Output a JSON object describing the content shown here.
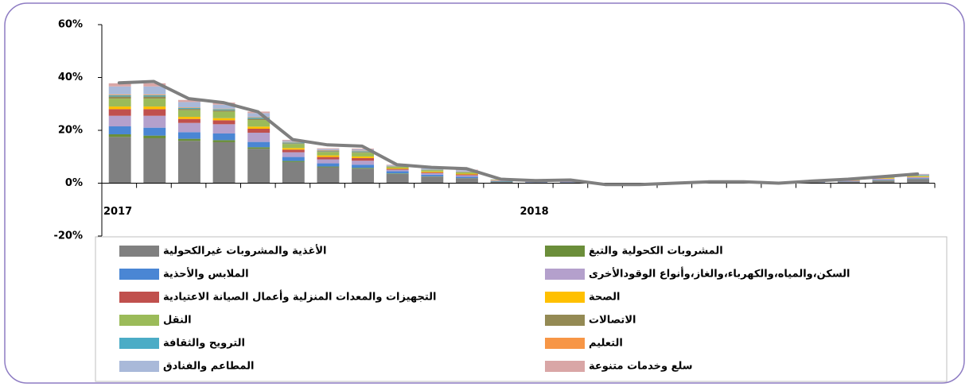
{
  "chart_data": {
    "type": "bar",
    "categories": [
      "2017",
      null,
      null,
      null,
      null,
      null,
      null,
      null,
      null,
      null,
      null,
      null,
      "2018",
      null,
      null,
      null,
      null,
      null,
      null,
      null,
      null,
      null,
      null,
      null
    ],
    "ylim": [
      -20,
      60
    ],
    "yticks": [
      {
        "value": -20,
        "label": "-20%"
      },
      {
        "value": 0,
        "label": "0%"
      },
      {
        "value": 20,
        "label": "20%"
      },
      {
        "value": 40,
        "label": "40%"
      },
      {
        "value": 60,
        "label": "60%"
      }
    ],
    "series": [
      {
        "name": "الأغذية والمشروبات غيرالكحولية",
        "color": "#808080",
        "values": [
          17.5,
          17,
          16,
          15.5,
          13,
          8,
          6,
          5.5,
          3.5,
          2.5,
          1.8,
          0.5,
          0.3,
          0.3,
          -0.3,
          -0.3,
          0,
          0.2,
          0.2,
          0,
          0.3,
          0.6,
          1,
          1.5
        ]
      },
      {
        "name": "المشروبات الكحولية والتبغ",
        "color": "#6b8e3a",
        "values": [
          1,
          1,
          0.8,
          0.8,
          0.6,
          0.4,
          0.3,
          0.3,
          0.2,
          0.1,
          0.1,
          0.1,
          0,
          0,
          0,
          0,
          0,
          0,
          0,
          0,
          0,
          0,
          0.1,
          0.1
        ]
      },
      {
        "name": "الملابس والأحذية",
        "color": "#4a86d4",
        "values": [
          3,
          3,
          2.5,
          2.5,
          2,
          1.5,
          1.2,
          1.2,
          0.8,
          0.6,
          0.5,
          0.2,
          0.1,
          0.1,
          0,
          0,
          0,
          0,
          0,
          0,
          0.1,
          0.1,
          0.2,
          0.2
        ]
      },
      {
        "name": "السكن،والمياه،والكهرباء،والغاز،وأنواع الوقودالأخرى",
        "color": "#b4a0cc",
        "values": [
          4,
          4.5,
          3.5,
          3.5,
          3.5,
          1.8,
          1.5,
          1.5,
          0.6,
          0.6,
          0.6,
          0.2,
          0.2,
          0.2,
          -0.1,
          -0.1,
          0,
          0.1,
          0.1,
          0,
          0.1,
          0.2,
          0.3,
          0.4
        ]
      },
      {
        "name": "التجهيزات والمعدات المنزلية وأعمال الصيانة الاعتيادية",
        "color": "#c0504d",
        "values": [
          2.5,
          2.5,
          1.5,
          1.5,
          1.5,
          1,
          0.9,
          1,
          0.3,
          0.3,
          0.3,
          0.1,
          0.1,
          0.1,
          0,
          0,
          0,
          0,
          0,
          0,
          0,
          0.1,
          0.1,
          0.1
        ]
      },
      {
        "name": "الصحة",
        "color": "#ffc000",
        "values": [
          1,
          1,
          0.8,
          0.8,
          0.8,
          0.6,
          0.6,
          0.6,
          0.3,
          0.3,
          0.3,
          0.1,
          0.1,
          0.1,
          0,
          0,
          0,
          0,
          0,
          0,
          0,
          0.1,
          0.2,
          0.2
        ]
      },
      {
        "name": "النقل",
        "color": "#9bbb59",
        "values": [
          3,
          3,
          2.5,
          2.5,
          2.5,
          1.5,
          1.3,
          1.4,
          0.5,
          0.5,
          0.5,
          0.1,
          0.1,
          0.1,
          0,
          0,
          0,
          0.1,
          0.1,
          0,
          0.1,
          0.1,
          0.2,
          0.3
        ]
      },
      {
        "name": "الاتصالات",
        "color": "#948a54",
        "values": [
          0.8,
          0.8,
          0.5,
          0.5,
          0.5,
          0.3,
          0.3,
          0.3,
          0.1,
          0.1,
          0.1,
          0,
          0,
          0,
          0,
          0,
          0,
          0,
          0,
          0,
          0,
          0,
          0.1,
          0.1
        ]
      },
      {
        "name": "الترويح والثقافة",
        "color": "#4bacc6",
        "values": [
          0.5,
          0.5,
          0.4,
          0.4,
          0.4,
          0.3,
          0.2,
          0.3,
          0.1,
          0.1,
          0.1,
          0,
          0,
          0,
          0,
          0,
          0,
          0,
          0,
          0,
          0,
          0,
          0,
          0.1
        ]
      },
      {
        "name": "التعليم",
        "color": "#f79646",
        "values": [
          0.3,
          0.3,
          0.2,
          0.2,
          0.2,
          0.2,
          0.2,
          0.2,
          0.1,
          0.1,
          0.1,
          0,
          0,
          0,
          0,
          0,
          0,
          0,
          0,
          0,
          0,
          0,
          0,
          0
        ]
      },
      {
        "name": "المطاعم  والفنادق",
        "color": "#a9b9d9",
        "values": [
          3,
          3,
          2,
          1.5,
          1.5,
          0.5,
          0.4,
          0.5,
          0.3,
          0.4,
          0.5,
          0.2,
          0.1,
          0.2,
          0,
          0,
          0,
          0.1,
          0.1,
          0,
          0.1,
          0.2,
          0.2,
          0.3
        ]
      },
      {
        "name": "سلع وخدمات متنوعة",
        "color": "#d9a6a6",
        "values": [
          1.2,
          1.2,
          0.8,
          0.8,
          0.6,
          0.3,
          0.3,
          0.3,
          0.2,
          0.2,
          0.2,
          0,
          0,
          0.1,
          0,
          0,
          0,
          0,
          0,
          0,
          0,
          0.1,
          0.1,
          0.2
        ]
      }
    ],
    "line": {
      "color": "#7f7f7f",
      "values": [
        38,
        38.5,
        32,
        30.5,
        27,
        16.5,
        14.5,
        14,
        7,
        6,
        5.5,
        1.5,
        1,
        1.2,
        -0.5,
        -0.5,
        0,
        0.5,
        0.5,
        0,
        0.8,
        1.5,
        2.5,
        3.5
      ]
    }
  }
}
